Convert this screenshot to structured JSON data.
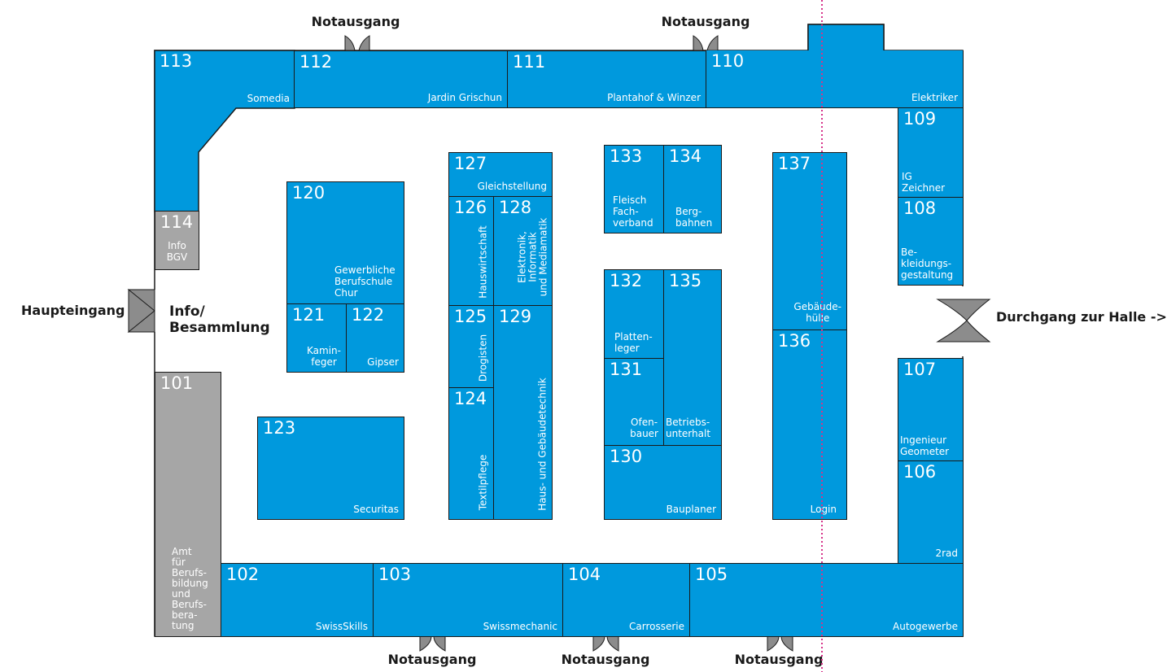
{
  "colors": {
    "booth": "#0099dd",
    "booth_gray": "#a6a6a6",
    "outline": "#1a1a1a",
    "door": "#8c8c8c",
    "guide_line": "#d6338a"
  },
  "entrances": {
    "main": "Haupteingang",
    "info": "Info/\nBesammlung",
    "passage": "Durchgang zur Halle ->",
    "exit_top_1": "Notausgang",
    "exit_top_2": "Notausgang",
    "exit_bottom_1": "Notausgang",
    "exit_bottom_2": "Notausgang",
    "exit_bottom_3": "Notausgang"
  },
  "booths": {
    "b113": {
      "num": "113",
      "label": "Somedia"
    },
    "b112": {
      "num": "112",
      "label": "Jardin Grischun"
    },
    "b111": {
      "num": "111",
      "label": "Plantahof & Winzer"
    },
    "b110": {
      "num": "110",
      "label": "Elektriker"
    },
    "b109": {
      "num": "109",
      "label": "IG\nZeichner"
    },
    "b108": {
      "num": "108",
      "label": "Be-\nkleidungs-\ngestaltung"
    },
    "b107": {
      "num": "107",
      "label": "Ingenieur\nGeometer"
    },
    "b106": {
      "num": "106",
      "label": "2rad"
    },
    "b105": {
      "num": "105",
      "label": "Autogewerbe"
    },
    "b104": {
      "num": "104",
      "label": "Carrosserie"
    },
    "b103": {
      "num": "103",
      "label": "Swissmechanic"
    },
    "b102": {
      "num": "102",
      "label": "SwissSkills"
    },
    "b101": {
      "num": "101",
      "label": "Amt\nfür\nBerufs-\nbildung\nund\nBerufs-\nbera-\ntung"
    },
    "b114": {
      "num": "114",
      "label": "Info\nBGV"
    },
    "b120": {
      "num": "120",
      "label": "Gewerbliche\nBerufschule\nChur"
    },
    "b121": {
      "num": "121",
      "label": "Kamin-\nfeger"
    },
    "b122": {
      "num": "122",
      "label": "Gipser"
    },
    "b123": {
      "num": "123",
      "label": "Securitas"
    },
    "b127": {
      "num": "127",
      "label": "Gleichstellung"
    },
    "b126": {
      "num": "126",
      "label": "Hauswirtschaft"
    },
    "b128": {
      "num": "128",
      "label": "Elektronik,\nInformatik\nund Mediamatik"
    },
    "b125": {
      "num": "125",
      "label": "Drogisten"
    },
    "b129": {
      "num": "129",
      "label": "Haus- und Gebäudetechnik"
    },
    "b124": {
      "num": "124",
      "label": "Textilpflege"
    },
    "b133": {
      "num": "133",
      "label": "Fleisch\nFach-\nverband"
    },
    "b134": {
      "num": "134",
      "label": "Berg-\nbahnen"
    },
    "b132": {
      "num": "132",
      "label": "Platten-\nleger"
    },
    "b135": {
      "num": "135",
      "label": ""
    },
    "b131": {
      "num": "131",
      "label": "Ofen-\nbauer"
    },
    "b135b": {
      "label": "Betriebs-\nunterhalt"
    },
    "b130": {
      "num": "130",
      "label": "Bauplaner"
    },
    "b137": {
      "num": "137",
      "label": "Gebäude-\nhülle"
    },
    "b136": {
      "num": "136",
      "label": "Login"
    }
  }
}
